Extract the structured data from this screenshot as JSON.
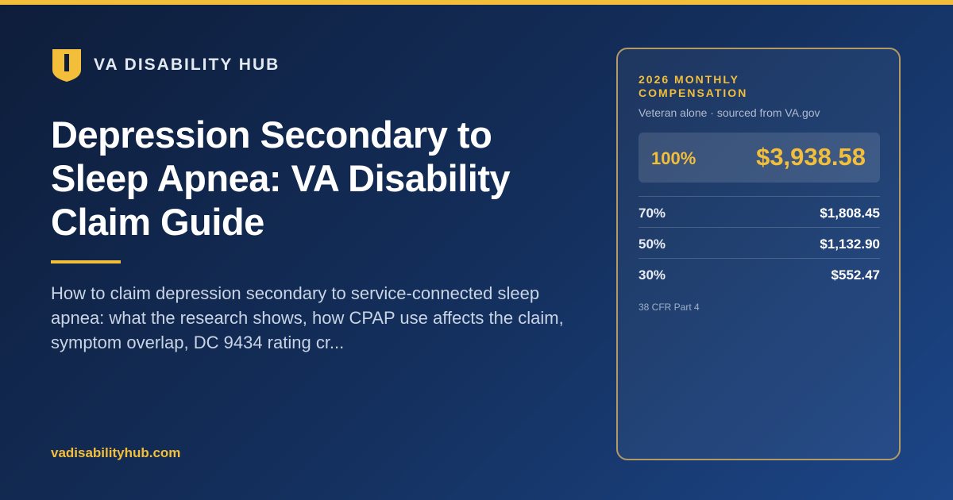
{
  "brand": {
    "name": "VA DISABILITY HUB"
  },
  "title": "Depression Secondary to Sleep Apnea: VA Disability Claim Guide",
  "description": "How to claim depression secondary to service-connected sleep apnea: what the research shows, how CPAP use affects the claim, symptom overlap, DC 9434 rating cr...",
  "url": "vadisabilityhub.com",
  "card": {
    "heading": "2026 MONTHLY COMPENSATION",
    "subheading": "Veteran alone · sourced from VA.gov",
    "featured": {
      "rating": "100%",
      "amount": "$3,938.58"
    },
    "rows": [
      {
        "rating": "70%",
        "amount": "$1,808.45"
      },
      {
        "rating": "50%",
        "amount": "$1,132.90"
      },
      {
        "rating": "30%",
        "amount": "$552.47"
      }
    ],
    "footnote": "38 CFR Part 4"
  }
}
